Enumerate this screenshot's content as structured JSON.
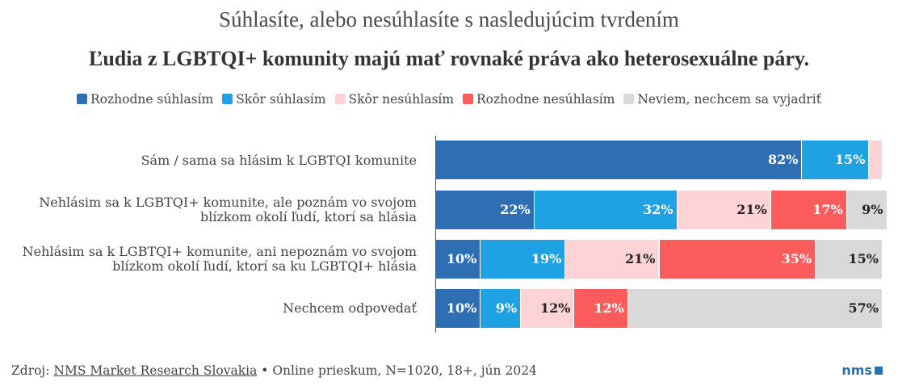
{
  "title": "Súhlasíte, alebo nesúhlasíte s nasledujúcim tvrdením",
  "subtitle": "Ľudia z LGBTQI+ komunity majú mať rovnaké práva ako heterosexuálne páry.",
  "colors": [
    "#2e6fb4",
    "#1ea2e3",
    "#fdd3d5",
    "#fd5c5d",
    "#d9d9d9"
  ],
  "label_colors": [
    "#ffffff",
    "#ffffff",
    "#222222",
    "#ffffff",
    "#222222"
  ],
  "legend": [
    "Rozhodne súhlasím",
    "Skôr súhlasím",
    "Skôr nesúhlasím",
    "Rozhodne nesúhlasím",
    "Neviem, nechcem sa vyjadriť"
  ],
  "chart_data": {
    "type": "bar",
    "orientation": "horizontal",
    "stacked": true,
    "title": "Súhlasíte, alebo nesúhlasíte s nasledujúcim tvrdením",
    "subtitle": "Ľudia z LGBTQI+ komunity majú mať rovnaké práva ako heterosexuálne páry.",
    "categories": [
      [
        "Sám / sama sa hlásim k LGBTQI komunite"
      ],
      [
        "Nehlásim sa k LGBTQI+ komunite, ale poznám vo svojom",
        "blízkom okolí ľudí, ktorí sa hlásia"
      ],
      [
        "Nehlásim sa k LGBTQI+ komunite, ani nepoznám vo svojom",
        "blízkom okolí ľudí, ktorí sa ku LGBTQI+ hlásia"
      ],
      [
        "Nechcem odpovedať"
      ]
    ],
    "series": [
      {
        "name": "Rozhodne súhlasím",
        "values": [
          82,
          22,
          10,
          10
        ],
        "labels": [
          "82%",
          "22%",
          "10%",
          "10%"
        ]
      },
      {
        "name": "Skôr súhlasím",
        "values": [
          15,
          32,
          19,
          9
        ],
        "labels": [
          "15%",
          "32%",
          "19%",
          "9%"
        ]
      },
      {
        "name": "Skôr nesúhlasím",
        "values": [
          3,
          21,
          21,
          12
        ],
        "labels": [
          "",
          "21%",
          "21%",
          "12%"
        ]
      },
      {
        "name": "Rozhodne nesúhlasím",
        "values": [
          0,
          17,
          35,
          12
        ],
        "labels": [
          "",
          "17%",
          "35%",
          "12%"
        ]
      },
      {
        "name": "Neviem, nechcem sa vyjadriť",
        "values": [
          0,
          9,
          15,
          57
        ],
        "labels": [
          "",
          "9%",
          "15%",
          "57%"
        ]
      }
    ],
    "xlim": [
      0,
      100
    ],
    "legend_position": "top"
  },
  "footer": {
    "prefix": "Zdroj: ",
    "source": "NMS Market Research Slovakia",
    "suffix": " • Online prieskum, N=1020, 18+, jún 2024"
  },
  "logo_text": "nms"
}
